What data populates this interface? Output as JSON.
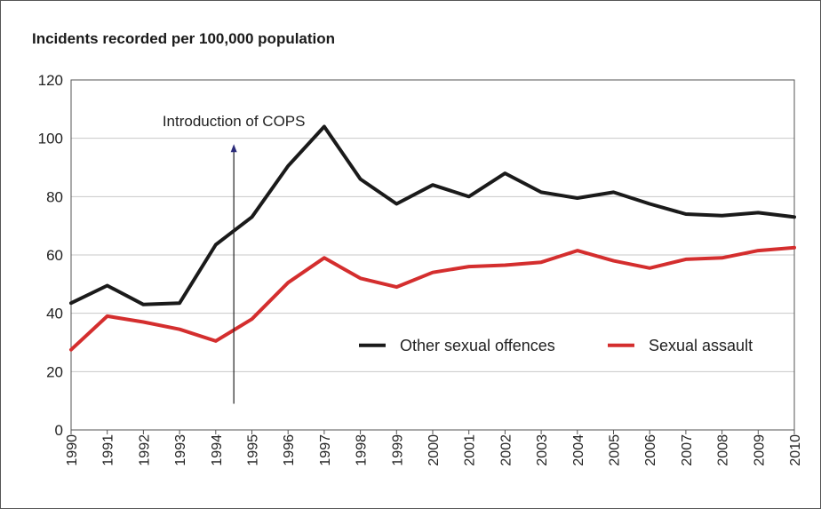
{
  "chart_data": {
    "type": "line",
    "title": "Incidents recorded per 100,000 population",
    "xlabel": "",
    "ylabel": "",
    "x": [
      "1990",
      "1991",
      "1992",
      "1993",
      "1994",
      "1995",
      "1996",
      "1997",
      "1998",
      "1999",
      "2000",
      "2001",
      "2002",
      "2003",
      "2004",
      "2005",
      "2006",
      "2007",
      "2008",
      "2009",
      "2010"
    ],
    "ylim": [
      0,
      120
    ],
    "yticks": [
      0,
      20,
      40,
      60,
      80,
      100,
      120
    ],
    "grid": true,
    "legend_position": "right-middle",
    "series": [
      {
        "name": "Other sexual offences",
        "color": "#1a1a1a",
        "values": [
          43.5,
          49.5,
          43,
          43.5,
          63.5,
          73,
          90.5,
          104,
          86,
          77.5,
          84,
          80,
          88,
          81.5,
          79.5,
          81.5,
          77.5,
          74,
          73.5,
          74.5,
          73
        ]
      },
      {
        "name": "Sexual assault",
        "color": "#d42e2e",
        "values": [
          27.5,
          39,
          37,
          34.5,
          30.5,
          38,
          50.5,
          59,
          52,
          49,
          54,
          56,
          56.5,
          57.5,
          61.5,
          58,
          55.5,
          58.5,
          59,
          61.5,
          62.5
        ]
      }
    ],
    "annotation": {
      "text": "Introduction of COPS",
      "x": 1994.5,
      "y_from": 9,
      "y_to": 98
    }
  }
}
